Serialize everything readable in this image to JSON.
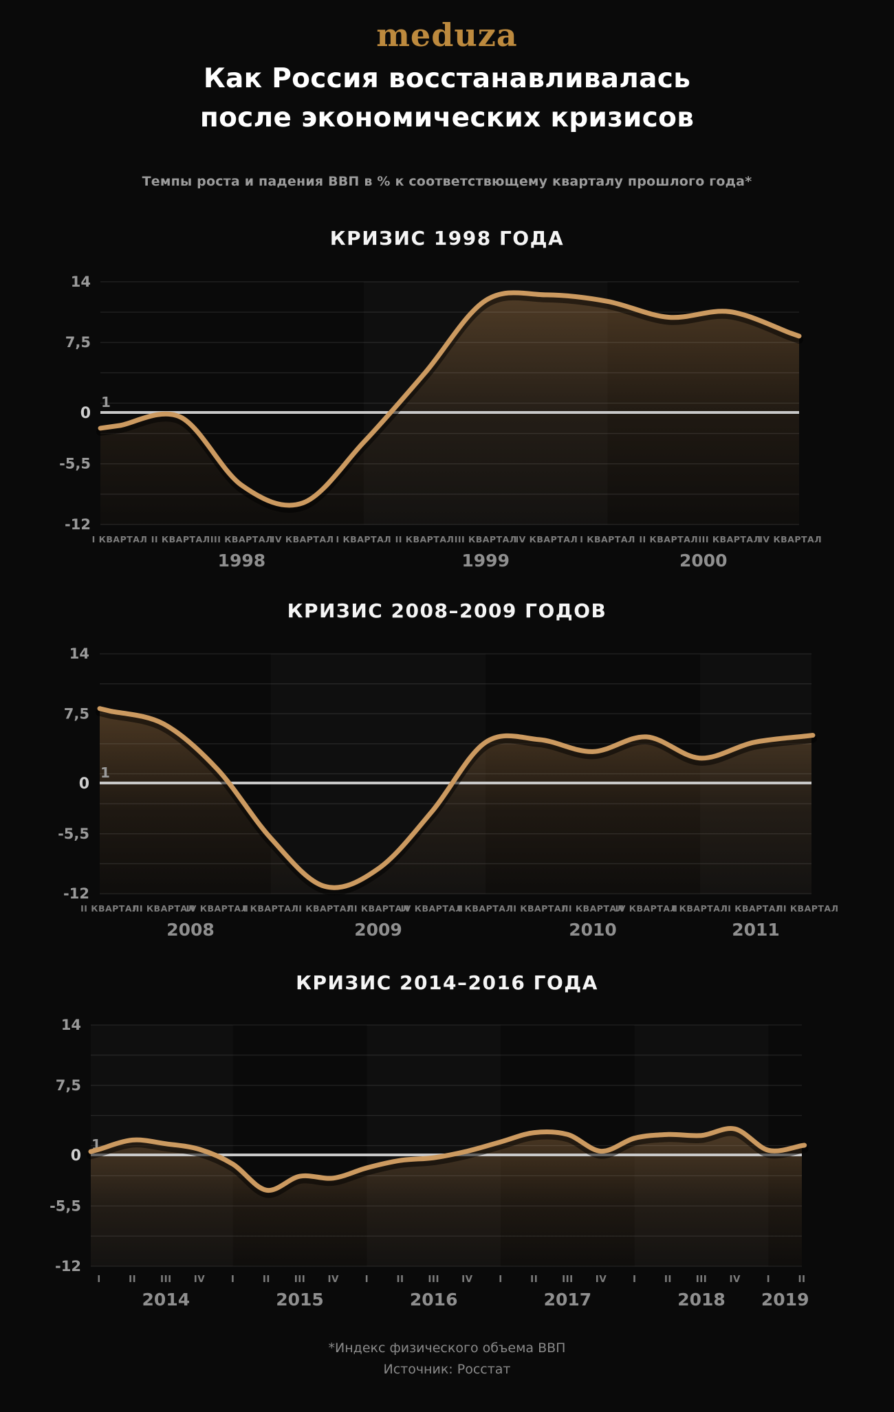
{
  "header": {
    "logo": "meduza",
    "title_line1": "Как Россия восстанавливалась",
    "title_line2": "после экономических кризисов",
    "subtitle": "Темпы роста и падения ВВП в % к соответствющему кварталу прошлого года*"
  },
  "y_axis": {
    "top": 14,
    "bottom": -12,
    "grid_step": 3.25,
    "labels": [
      {
        "value": 14,
        "text": "14"
      },
      {
        "value": 7.5,
        "text": "7,5"
      },
      {
        "value": 1,
        "text": "1"
      },
      {
        "value": 0,
        "text": "0"
      },
      {
        "value": -5.5,
        "text": "-5,5"
      },
      {
        "value": -12,
        "text": "-12"
      }
    ]
  },
  "chart_data": [
    {
      "type": "area",
      "title": "КРИЗИС 1998 ГОДА",
      "x_labels": [
        "I КВАРТАЛ",
        "II КВАРТАЛ",
        "III КВАРТАЛ",
        "IV КВАРТАЛ",
        "I КВАРТАЛ",
        "II КВАРТАЛ",
        "III КВАРТАЛ",
        "IV КВАРТАЛ",
        "I КВАРТАЛ",
        "II КВАРТАЛ",
        "III КВАРТАЛ",
        "IV КВАРТАЛ"
      ],
      "years": [
        {
          "label": "1998",
          "quarters": 4,
          "light": false
        },
        {
          "label": "1999",
          "quarters": 4,
          "light": true
        },
        {
          "label": "2000",
          "quarters": 4,
          "light": false
        }
      ],
      "values": [
        -1.4,
        -0.5,
        -7.8,
        -9.7,
        -3.2,
        4.2,
        12.0,
        12.6,
        11.9,
        10.2,
        10.8,
        8.5
      ],
      "ylim": [
        -12,
        14
      ]
    },
    {
      "type": "area",
      "title": "КРИЗИС 2008–2009 ГОДОВ",
      "x_labels": [
        "II КВАРТАЛ",
        "III КВАРТАЛ",
        "IV КВАРТАЛ",
        "I КВАРТАЛ",
        "II КВАРТАЛ",
        "III КВАРТАЛ",
        "IV КВАРТАЛ",
        "I КВАРТАЛ",
        "II КВАРТАЛ",
        "III КВАРТАЛ",
        "IV КВАРТАЛ",
        "I КВАРТАЛ",
        "II КВАРТАЛ",
        "III КВАРТАЛ"
      ],
      "years": [
        {
          "label": "2008",
          "quarters": 3,
          "light": false
        },
        {
          "label": "2009",
          "quarters": 4,
          "light": true
        },
        {
          "label": "2010",
          "quarters": 4,
          "light": false
        },
        {
          "label": "2011",
          "quarters": 3,
          "light": true
        }
      ],
      "values": [
        7.8,
        6.4,
        1.5,
        -6.0,
        -11.2,
        -9.3,
        -3.1,
        4.4,
        4.7,
        3.4,
        5.0,
        2.7,
        4.4,
        5.1
      ],
      "ylim": [
        -12,
        14
      ]
    },
    {
      "type": "area",
      "title": "КРИЗИС 2014–2016 ГОДА",
      "x_labels": [
        "I",
        "II",
        "III",
        "IV",
        "I",
        "II",
        "III",
        "IV",
        "I",
        "II",
        "III",
        "IV",
        "I",
        "II",
        "III",
        "IV",
        "I",
        "II",
        "III",
        "IV",
        "I",
        "II"
      ],
      "years": [
        {
          "label": "2014",
          "quarters": 4,
          "light": true
        },
        {
          "label": "2015",
          "quarters": 4,
          "light": false
        },
        {
          "label": "2016",
          "quarters": 4,
          "light": true
        },
        {
          "label": "2017",
          "quarters": 4,
          "light": false
        },
        {
          "label": "2018",
          "quarters": 4,
          "light": true
        },
        {
          "label": "2019",
          "quarters": 2,
          "light": false
        }
      ],
      "values": [
        0.6,
        1.6,
        1.2,
        0.6,
        -1.0,
        -3.8,
        -2.3,
        -2.5,
        -1.4,
        -0.6,
        -0.3,
        0.4,
        1.4,
        2.4,
        2.2,
        0.4,
        1.8,
        2.2,
        2.1,
        2.8,
        0.5,
        1.0
      ],
      "ylim": [
        -12,
        14
      ]
    }
  ],
  "footer": {
    "note": "*Индекс физического объема ВВП",
    "source": "Источник: Росстат"
  },
  "colors": {
    "background": "#0a0a0a",
    "curve": "#cc9a60",
    "area_fill": "#a87946",
    "zero_line": "#c9c9c9",
    "gridline": "rgba(255,255,255,0.10)",
    "year_band": "rgba(255,255,255,0.022)",
    "logo_gold": "#bd8a3e",
    "title_white": "#ffffff",
    "label_gray": "#9a9a9a"
  }
}
